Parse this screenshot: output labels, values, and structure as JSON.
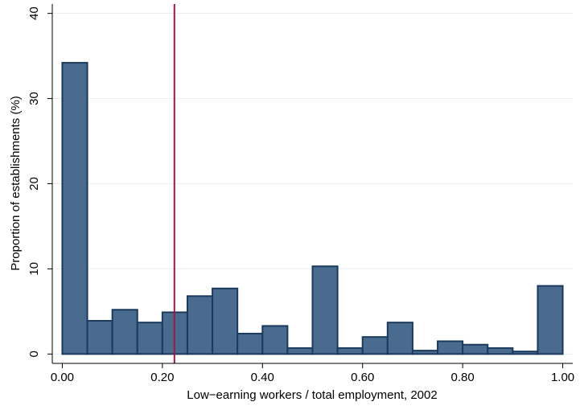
{
  "chart_data": {
    "type": "histogram",
    "x_label": "Low−earning workers / total employment, 2002",
    "y_label": "Proportion of establishments (%)",
    "bins": [
      0,
      0.05,
      0.1,
      0.15,
      0.2,
      0.25,
      0.3,
      0.35,
      0.4,
      0.45,
      0.5,
      0.55,
      0.6,
      0.65,
      0.7,
      0.75,
      0.8,
      0.85,
      0.9,
      0.95,
      1.0
    ],
    "values": [
      34.2,
      3.9,
      5.2,
      3.7,
      4.9,
      6.8,
      7.7,
      2.4,
      3.3,
      0.7,
      10.3,
      0.7,
      2.0,
      3.7,
      0.4,
      1.5,
      1.1,
      0.7,
      0.3,
      8.0
    ],
    "color": "#486b8f",
    "edge_color": "#1b3a5c",
    "vline": 0.224,
    "vline_color": "#a3163f",
    "xlim": [
      -0.02,
      1.02
    ],
    "ylim": [
      -1.1,
      41.1
    ],
    "xticks": [
      {
        "value": 0,
        "label": "0.00"
      },
      {
        "value": 0.2,
        "label": "0.20"
      },
      {
        "value": 0.4,
        "label": "0.40"
      },
      {
        "value": 0.6,
        "label": "0.60"
      },
      {
        "value": 0.8,
        "label": "0.80"
      },
      {
        "value": 1.0,
        "label": "1.00"
      }
    ],
    "yticks": [
      0,
      10,
      20,
      30,
      40
    ],
    "grid": true
  }
}
